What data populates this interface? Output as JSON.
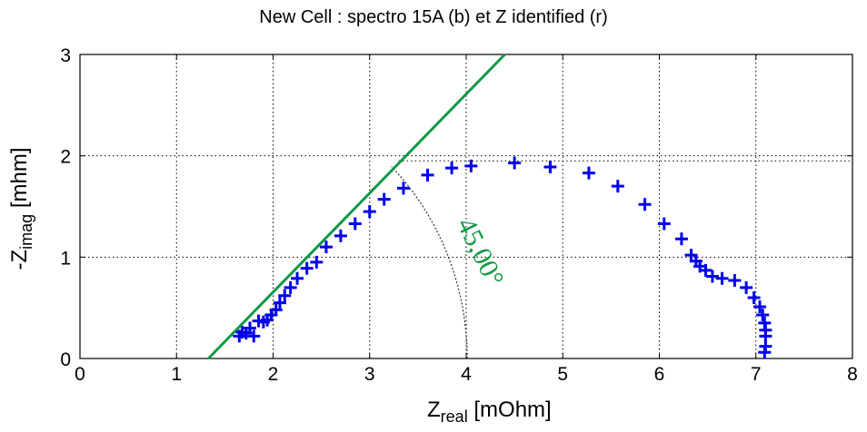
{
  "chart_data": {
    "type": "scatter",
    "title": "New Cell  : spectro 15A (b) et Z identified (r)",
    "xlabel_main": "Z",
    "xlabel_sub": "real",
    "xlabel_unit": "[mOhm]",
    "ylabel_main": "-Z",
    "ylabel_sub": "imag",
    "ylabel_unit": "[mhm]",
    "xlim": [
      0,
      8
    ],
    "ylim": [
      0,
      3
    ],
    "xticks": [
      "0",
      "1",
      "2",
      "3",
      "4",
      "5",
      "6",
      "7",
      "8"
    ],
    "yticks": [
      "0",
      "1",
      "2",
      "3"
    ],
    "grid": true,
    "colors": {
      "series": "#0000ee",
      "line": "#119944",
      "arc": "#333333"
    },
    "series": [
      {
        "marker": "plus",
        "x": [
          1.65,
          1.68,
          1.72,
          1.76,
          1.8,
          1.85,
          1.9,
          1.94,
          1.98,
          2.03,
          2.07,
          2.12,
          2.18,
          2.25,
          2.35,
          2.45,
          2.55,
          2.7,
          2.85,
          3.0,
          3.15,
          3.35,
          3.6,
          3.85,
          4.05,
          4.5,
          4.87,
          5.27,
          5.57,
          5.85,
          6.05,
          6.23,
          6.33,
          6.38,
          6.42,
          6.48,
          6.55,
          6.65,
          6.78,
          6.9,
          6.98,
          7.04,
          7.07,
          7.09,
          7.1,
          7.1,
          7.1,
          7.09
        ],
        "y": [
          0.22,
          0.26,
          0.25,
          0.3,
          0.22,
          0.37,
          0.36,
          0.38,
          0.43,
          0.48,
          0.55,
          0.62,
          0.7,
          0.79,
          0.89,
          0.95,
          1.1,
          1.21,
          1.33,
          1.45,
          1.57,
          1.68,
          1.81,
          1.88,
          1.9,
          1.93,
          1.89,
          1.83,
          1.7,
          1.52,
          1.33,
          1.18,
          1.02,
          0.96,
          0.91,
          0.87,
          0.81,
          0.79,
          0.77,
          0.7,
          0.6,
          0.51,
          0.43,
          0.35,
          0.28,
          0.22,
          0.12,
          0.06
        ]
      }
    ],
    "reference_line": {
      "x": [
        1.33,
        4.4
      ],
      "y": [
        0,
        3
      ]
    },
    "angle_arc": {
      "center_x": 1.33,
      "center_y": 0,
      "radius": 2.68,
      "start_deg": 0,
      "end_deg": 45
    },
    "annotation": "45,00°",
    "guide_dotted": {
      "x": [
        3.3,
        8
      ],
      "y": [
        1.95,
        1.95
      ]
    }
  }
}
